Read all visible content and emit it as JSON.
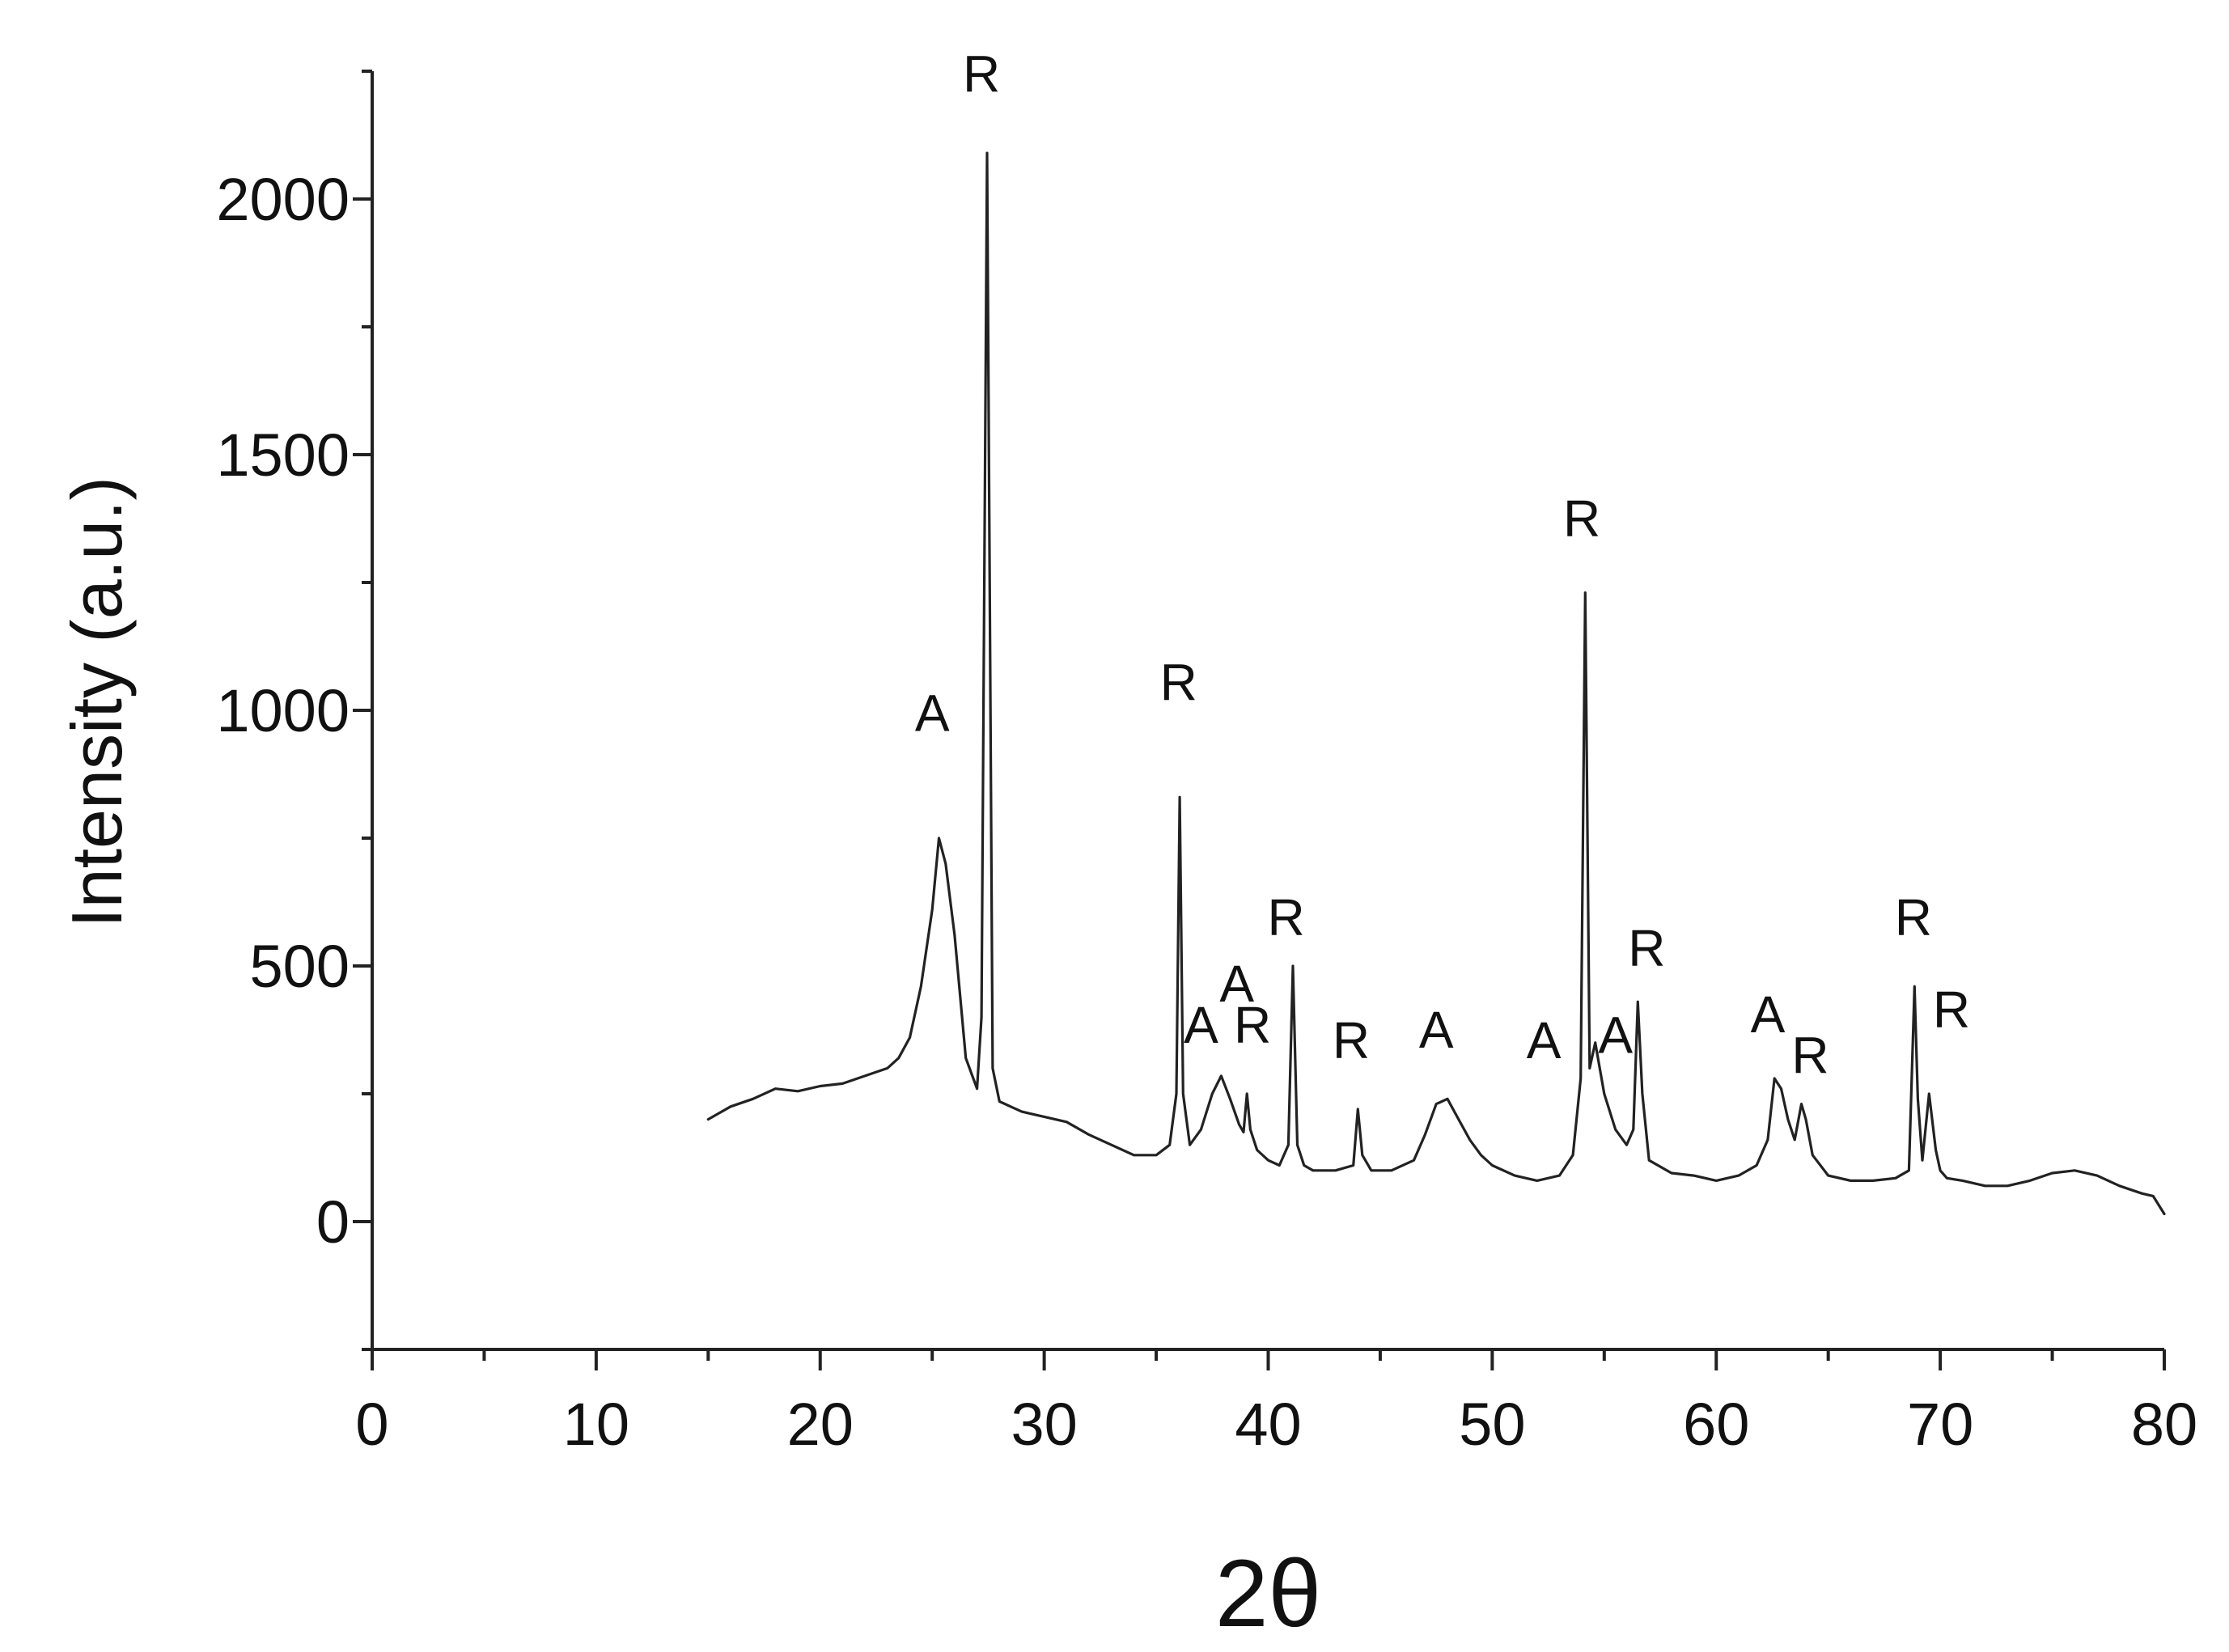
{
  "chart_data": {
    "type": "line",
    "title": "",
    "xlabel": "2θ",
    "ylabel": "Intensity (a.u.)",
    "xlim": [
      0,
      80
    ],
    "ylim": [
      -250,
      2250
    ],
    "x_ticks": [
      0,
      10,
      20,
      30,
      40,
      50,
      60,
      70,
      80
    ],
    "y_ticks": [
      0,
      500,
      1000,
      1500,
      2000
    ],
    "grid": false,
    "legend": "none",
    "line_color": "#222222",
    "series": [
      {
        "x": [
          15,
          16,
          17,
          18,
          19,
          20,
          21,
          22,
          23,
          23.5,
          24,
          24.5,
          25,
          25.3,
          25.6,
          26,
          26.5,
          27,
          27.2,
          27.45,
          27.7,
          28,
          28.5,
          29,
          30,
          31,
          32,
          33,
          34,
          35,
          35.6,
          35.9,
          36.05,
          36.2,
          36.5,
          37,
          37.5,
          37.9,
          38.3,
          38.7,
          38.9,
          39.05,
          39.2,
          39.5,
          40,
          40.5,
          40.9,
          41.1,
          41.3,
          41.6,
          42,
          43,
          43.8,
          44,
          44.2,
          44.6,
          45.5,
          46.5,
          47,
          47.5,
          48,
          48.5,
          49,
          49.5,
          50,
          51,
          52,
          53,
          53.6,
          53.95,
          54.15,
          54.35,
          54.6,
          55,
          55.5,
          56,
          56.3,
          56.5,
          56.7,
          57,
          58,
          59,
          60,
          61,
          61.8,
          62.3,
          62.6,
          62.9,
          63.2,
          63.5,
          63.8,
          64,
          64.3,
          65,
          66,
          67,
          68,
          68.6,
          68.85,
          69,
          69.2,
          69.5,
          69.8,
          70,
          70.3,
          71,
          72,
          73,
          74,
          75,
          76,
          77,
          78,
          79,
          79.5,
          80
        ],
        "y": [
          200,
          225,
          240,
          260,
          255,
          265,
          270,
          285,
          300,
          320,
          360,
          460,
          610,
          750,
          700,
          560,
          320,
          260,
          400,
          2090,
          300,
          235,
          225,
          215,
          205,
          195,
          170,
          150,
          130,
          130,
          150,
          250,
          830,
          250,
          150,
          180,
          250,
          285,
          240,
          190,
          175,
          250,
          180,
          140,
          120,
          110,
          150,
          500,
          150,
          110,
          100,
          100,
          110,
          220,
          130,
          100,
          100,
          120,
          170,
          230,
          240,
          200,
          160,
          130,
          110,
          90,
          80,
          90,
          130,
          280,
          1230,
          300,
          350,
          250,
          180,
          150,
          180,
          430,
          250,
          120,
          95,
          90,
          80,
          90,
          110,
          160,
          280,
          260,
          200,
          160,
          230,
          200,
          130,
          90,
          80,
          80,
          85,
          100,
          460,
          240,
          120,
          250,
          140,
          100,
          85,
          80,
          70,
          70,
          80,
          95,
          100,
          90,
          70,
          55,
          50,
          15
        ]
      }
    ],
    "annotations": [
      {
        "text": "A",
        "x": 25,
        "y": 960
      },
      {
        "text": "R",
        "x": 27.2,
        "y": 2210
      },
      {
        "text": "R",
        "x": 36,
        "y": 1020
      },
      {
        "text": "A",
        "x": 37,
        "y": 350
      },
      {
        "text": "A",
        "x": 38.6,
        "y": 430
      },
      {
        "text": "R",
        "x": 39.3,
        "y": 350
      },
      {
        "text": "R",
        "x": 40.8,
        "y": 560
      },
      {
        "text": "R",
        "x": 43.7,
        "y": 320
      },
      {
        "text": "A",
        "x": 47.5,
        "y": 340
      },
      {
        "text": "A",
        "x": 52.3,
        "y": 320
      },
      {
        "text": "R",
        "x": 54,
        "y": 1340
      },
      {
        "text": "A",
        "x": 55.5,
        "y": 330
      },
      {
        "text": "R",
        "x": 56.9,
        "y": 500
      },
      {
        "text": "A",
        "x": 62.3,
        "y": 370
      },
      {
        "text": "R",
        "x": 64.2,
        "y": 290
      },
      {
        "text": "R",
        "x": 68.8,
        "y": 560
      },
      {
        "text": "R",
        "x": 70.5,
        "y": 380
      }
    ]
  }
}
